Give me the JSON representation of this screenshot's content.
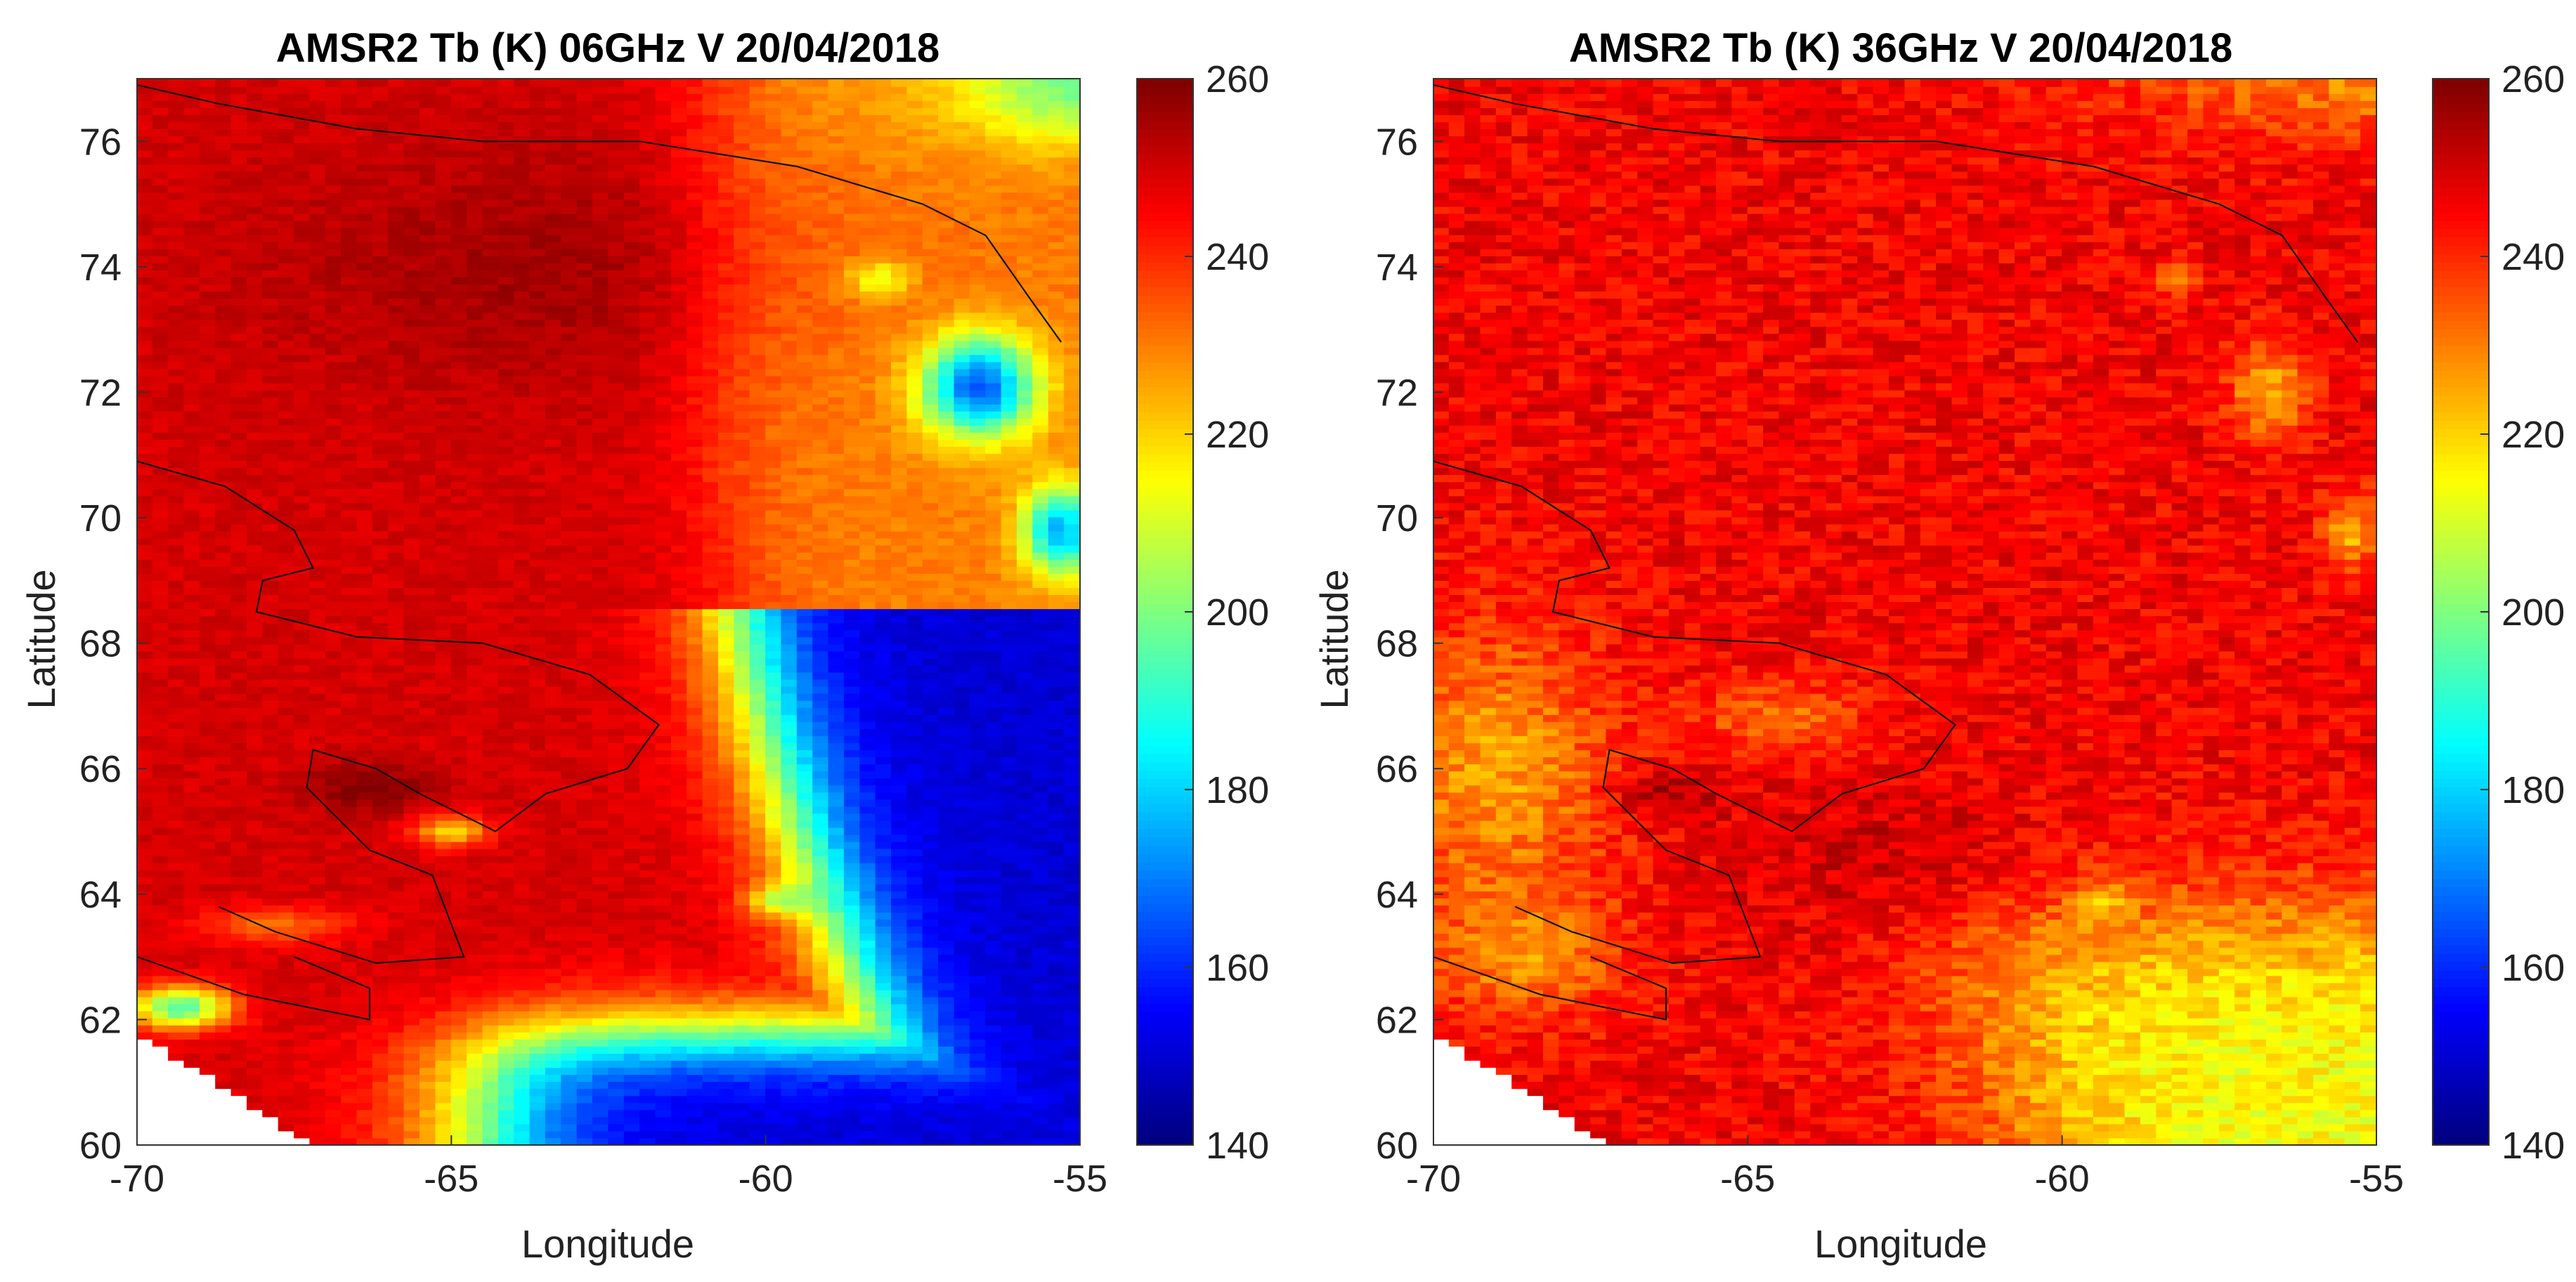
{
  "figure": {
    "panels": [
      {
        "id": "panel-6ghz",
        "title": "AMSR2 Tb (K) 06GHz V 20/04/2018",
        "xlabel": "Longitude",
        "ylabel": "Latitude"
      },
      {
        "id": "panel-36ghz",
        "title": "AMSR2 Tb (K) 36GHz V 20/04/2018",
        "xlabel": "Longitude",
        "ylabel": "Latitude"
      }
    ]
  },
  "chart_data": [
    {
      "type": "heatmap",
      "title": "AMSR2 Tb (K) 06GHz V 20/04/2018",
      "xlabel": "Longitude",
      "ylabel": "Latitude",
      "xlim": [
        -70,
        -55
      ],
      "ylim": [
        60,
        77
      ],
      "xticks": [
        -70,
        -65,
        -60,
        -55
      ],
      "yticks": [
        60,
        62,
        64,
        66,
        68,
        70,
        72,
        74,
        76
      ],
      "colorbar": {
        "min": 140,
        "max": 260,
        "ticks": [
          140,
          160,
          180,
          200,
          220,
          240,
          260
        ],
        "colormap": "jet",
        "unit": "K"
      },
      "grid_step_deg": 0.25,
      "field": {
        "base_tb": 249,
        "features": [
          {
            "kind": "ocean_gradient",
            "description": "open water east/south-east",
            "min_tb": 148
          },
          {
            "kind": "blob",
            "lon": -56.7,
            "lat": 72.1,
            "tb": 178,
            "description": "low Tb patch"
          },
          {
            "kind": "blob",
            "lon": -55.5,
            "lat": 69.8,
            "tb": 182,
            "description": "low Tb patch"
          },
          {
            "kind": "blob",
            "lon": -58.2,
            "lat": 73.8,
            "tb": 228,
            "description": "warm-yellow patch"
          },
          {
            "kind": "blob",
            "lon": -65.0,
            "lat": 65.0,
            "tb": 215,
            "description": "yellow patch"
          },
          {
            "kind": "blob",
            "lon": -59.8,
            "lat": 63.9,
            "tb": 222,
            "description": "yellow patch"
          },
          {
            "kind": "blob",
            "lon": -69.3,
            "lat": 62.2,
            "tb": 185,
            "description": "low Tb patch"
          },
          {
            "kind": "blob",
            "lon": -66.3,
            "lat": 65.7,
            "tb": 258,
            "description": "dark red core"
          }
        ]
      }
    },
    {
      "type": "heatmap",
      "title": "AMSR2 Tb (K) 36GHz V 20/04/2018",
      "xlabel": "Longitude",
      "ylabel": "Latitude",
      "xlim": [
        -70,
        -55
      ],
      "ylim": [
        60,
        77
      ],
      "xticks": [
        -70,
        -65,
        -60,
        -55
      ],
      "yticks": [
        60,
        62,
        64,
        66,
        68,
        70,
        72,
        74,
        76
      ],
      "colorbar": {
        "min": 140,
        "max": 260,
        "ticks": [
          140,
          160,
          180,
          200,
          220,
          240,
          260
        ],
        "colormap": "jet",
        "unit": "K"
      },
      "grid_step_deg": 0.25,
      "field": {
        "base_tb": 245,
        "features": [
          {
            "kind": "ocean_gradient",
            "description": "yellow-green south-east",
            "min_tb": 212
          },
          {
            "kind": "blob",
            "lon": -56.7,
            "lat": 72.0,
            "tb": 222,
            "description": "yellow patch"
          },
          {
            "kind": "blob",
            "lon": -55.5,
            "lat": 69.8,
            "tb": 222,
            "description": "yellow patch"
          },
          {
            "kind": "blob",
            "lon": -59.4,
            "lat": 63.9,
            "tb": 225,
            "description": "yellow patch"
          },
          {
            "kind": "blob",
            "lon": -69.0,
            "lat": 66.0,
            "tb": 222,
            "description": "yellow/orange west"
          },
          {
            "kind": "blob",
            "lon": -66.3,
            "lat": 65.6,
            "tb": 256,
            "description": "dark red core"
          }
        ]
      }
    }
  ],
  "coastlines_deg": {
    "north_coast": [
      [
        -70,
        76.9
      ],
      [
        -68.7,
        76.6
      ],
      [
        -66.5,
        76.2
      ],
      [
        -64.5,
        76.0
      ],
      [
        -62,
        76.0
      ],
      [
        -59.5,
        75.6
      ],
      [
        -58.5,
        75.3
      ],
      [
        -57.5,
        75.0
      ],
      [
        -56.5,
        74.5
      ],
      [
        -55.8,
        73.5
      ],
      [
        -55.3,
        72.8
      ]
    ],
    "west_coast": [
      [
        -70,
        70.9
      ],
      [
        -68.6,
        70.5
      ],
      [
        -67.5,
        69.8
      ],
      [
        -67.2,
        69.2
      ],
      [
        -68.0,
        69.0
      ],
      [
        -68.1,
        68.5
      ],
      [
        -66.5,
        68.1
      ],
      [
        -64.5,
        68.0
      ],
      [
        -62.8,
        67.5
      ],
      [
        -61.7,
        66.7
      ],
      [
        -62.2,
        66.0
      ],
      [
        -63.5,
        65.6
      ],
      [
        -64.3,
        65.0
      ],
      [
        -65.5,
        65.6
      ],
      [
        -66.2,
        66.0
      ],
      [
        -67.2,
        66.3
      ],
      [
        -67.3,
        65.7
      ],
      [
        -66.3,
        64.7
      ],
      [
        -65.3,
        64.3
      ],
      [
        -64.8,
        63.0
      ],
      [
        -66.2,
        62.9
      ],
      [
        -67.8,
        63.4
      ],
      [
        -68.7,
        63.8
      ]
    ],
    "south_bay": [
      [
        -70,
        63.0
      ],
      [
        -68.3,
        62.4
      ],
      [
        -66.3,
        62.0
      ],
      [
        -66.3,
        62.5
      ],
      [
        -67.5,
        63.0
      ]
    ]
  }
}
